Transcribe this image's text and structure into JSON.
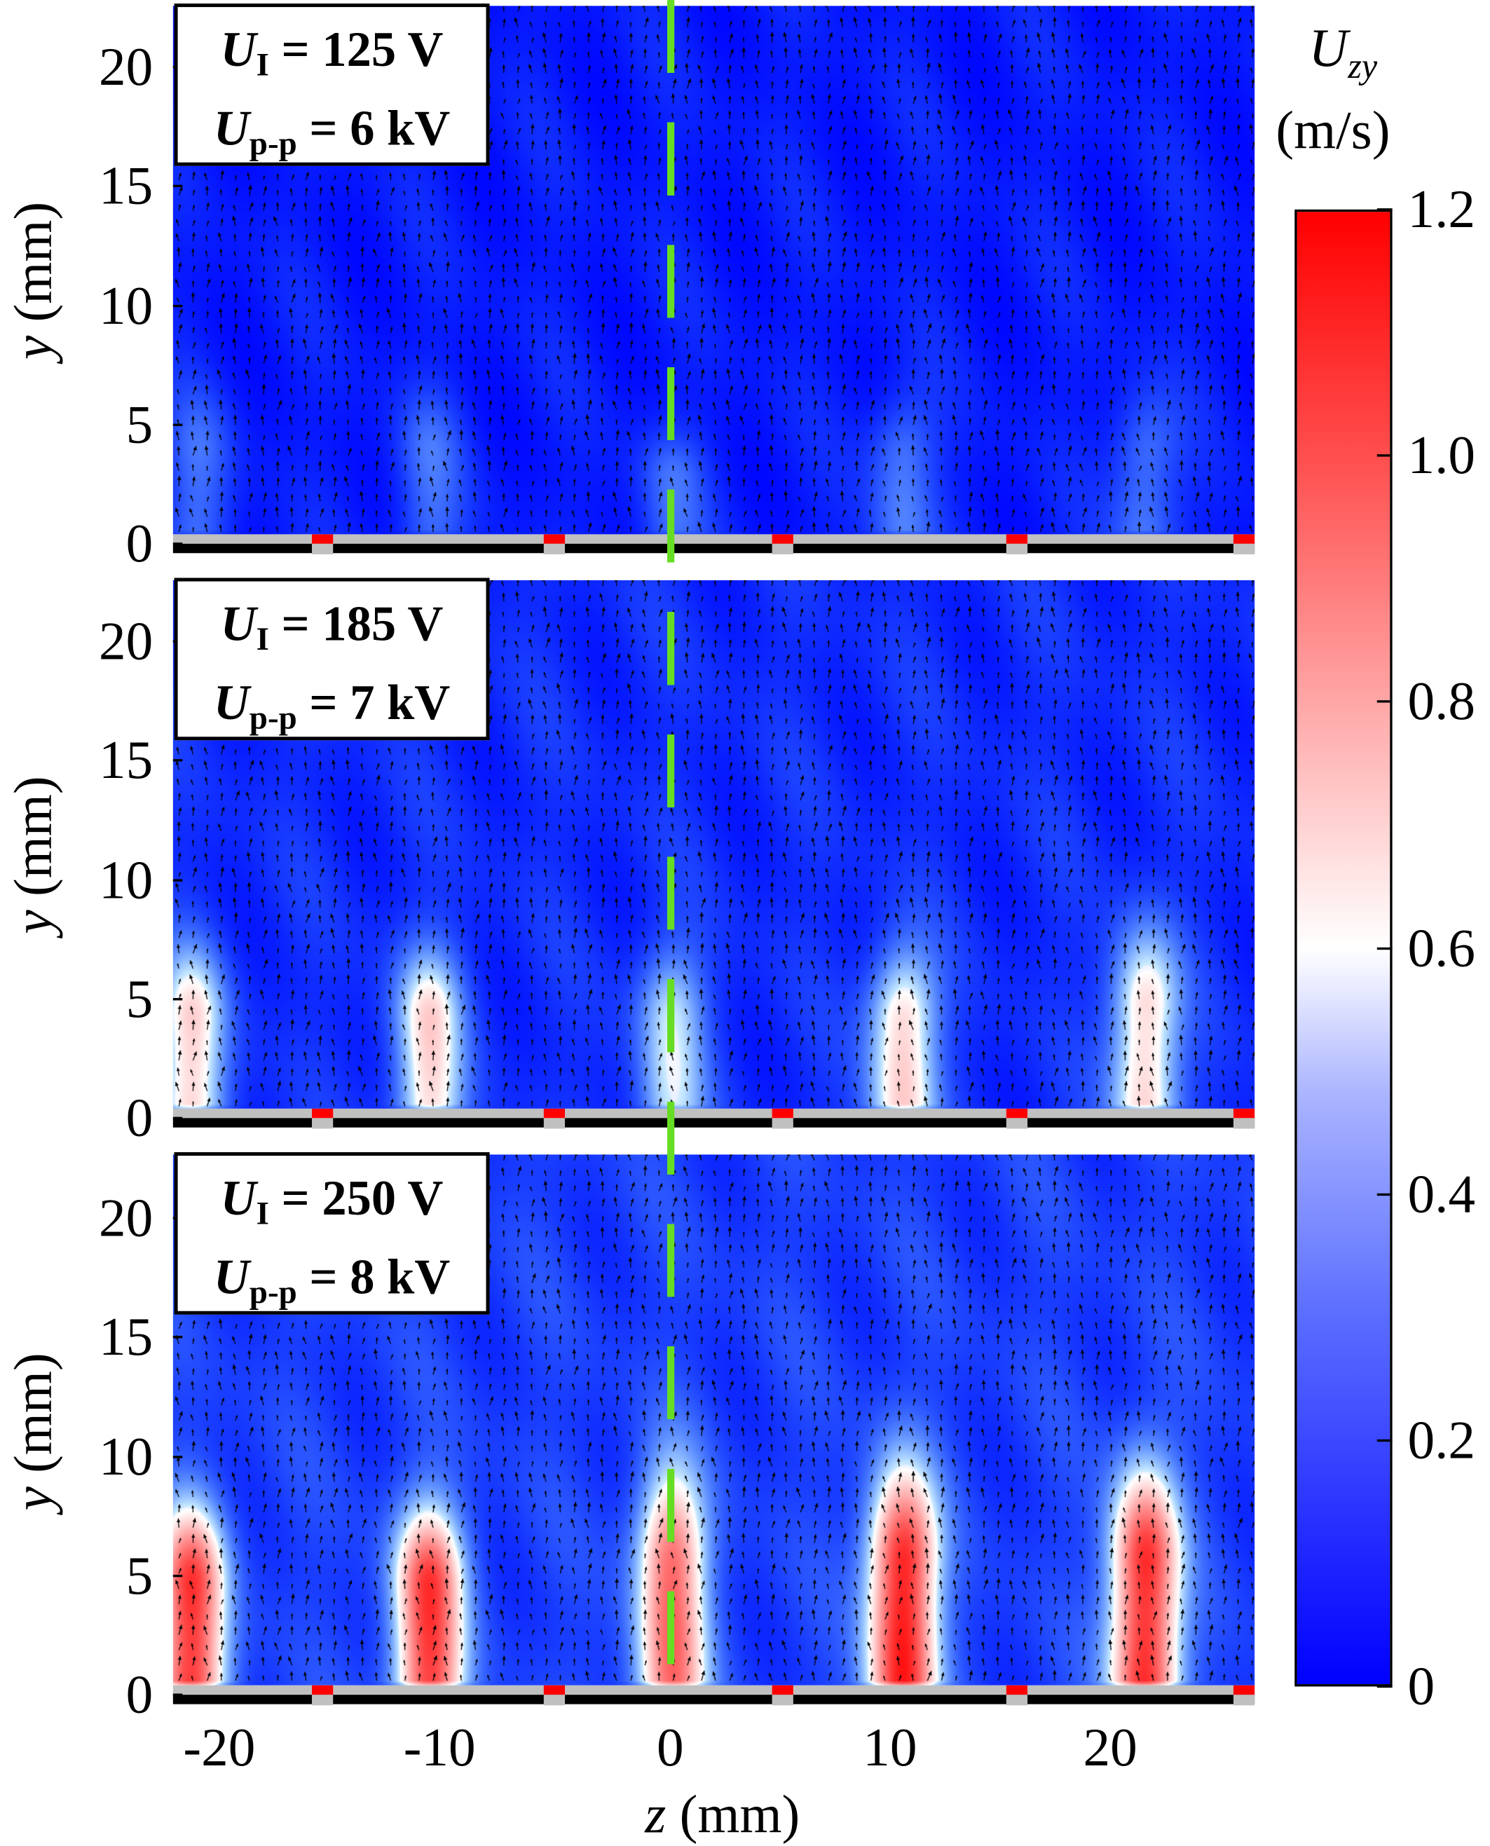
{
  "chart_data": {
    "type": "heatmap",
    "title": "",
    "xlabel": "z (mm)",
    "ylabel": "y (mm)",
    "xlim": [
      -22.6,
      26.5
    ],
    "ylim": [
      0,
      22
    ],
    "xticks": [
      "-20",
      "-10",
      "0",
      "10",
      "20"
    ],
    "xtick_values": [
      -20,
      -10,
      0,
      10,
      20
    ],
    "yticks": [
      "0",
      "5",
      "10",
      "15",
      "20"
    ],
    "ytick_values": [
      0,
      5,
      10,
      15,
      20
    ],
    "colorbar": {
      "label": "U",
      "label_sub": "zy",
      "unit": "(m/s)",
      "range": [
        0,
        1.2
      ],
      "ticks": [
        "0",
        "0.2",
        "0.4",
        "0.6",
        "0.8",
        "1.0",
        "1.2"
      ],
      "tick_values": [
        0,
        0.2,
        0.4,
        0.6,
        0.8,
        1.0,
        1.2
      ],
      "colors": [
        "#0000ff",
        "#ffffff",
        "#ff0000"
      ]
    },
    "electrode_positions_z": [
      -15.8,
      -5.3,
      5.1,
      15.7,
      26.0
    ],
    "reference_line_z": 0,
    "reference_line_color": "#66dd22",
    "panels": [
      {
        "label_U1": "U",
        "sub1": "I",
        "val1": " = 125 V",
        "label_U2": "U",
        "sub2": "p-p",
        "val2": " = 6 kV",
        "background": 0.1,
        "jets": [
          {
            "z": -21.5,
            "height": 8,
            "peak": 0.3
          },
          {
            "z": -11,
            "height": 8,
            "peak": 0.3
          },
          {
            "z": 0,
            "height": 6,
            "peak": 0.3
          },
          {
            "z": 10.5,
            "height": 8,
            "peak": 0.35
          },
          {
            "z": 21.5,
            "height": 8,
            "peak": 0.35
          }
        ]
      },
      {
        "label_U1": "U",
        "sub1": "I",
        "val1": " = 185 V",
        "label_U2": "U",
        "sub2": "p-p",
        "val2": " = 7 kV",
        "background": 0.15,
        "jets": [
          {
            "z": -21.8,
            "height": 9,
            "peak": 0.68
          },
          {
            "z": -11,
            "height": 9,
            "peak": 0.68
          },
          {
            "z": 0,
            "height": 9,
            "peak": 0.55
          },
          {
            "z": 10.5,
            "height": 9,
            "peak": 0.72
          },
          {
            "z": 21.5,
            "height": 10,
            "peak": 0.72
          }
        ]
      },
      {
        "label_U1": "U",
        "sub1": "I",
        "val1": " = 250 V",
        "label_U2": "U",
        "sub2": "p-p",
        "val2": " = 8 kV",
        "background": 0.2,
        "jets": [
          {
            "z": -21.8,
            "height": 10,
            "peak": 1.05
          },
          {
            "z": -11,
            "height": 10,
            "peak": 1.05
          },
          {
            "z": 0,
            "height": 12,
            "peak": 0.95
          },
          {
            "z": 10.5,
            "height": 12,
            "peak": 1.15
          },
          {
            "z": 21.5,
            "height": 12,
            "peak": 1.12
          }
        ]
      }
    ]
  }
}
